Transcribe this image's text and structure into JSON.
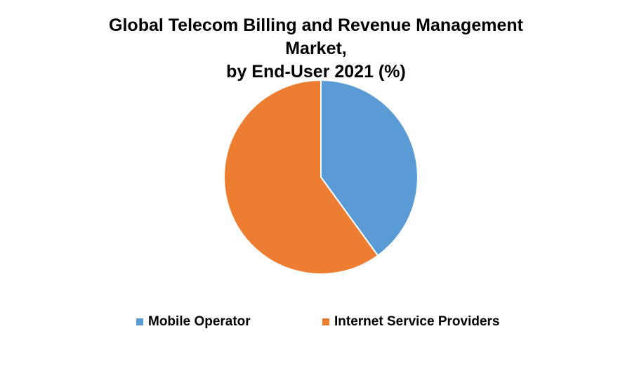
{
  "chart_data": {
    "type": "pie",
    "title_lines": [
      "Global Telecom Billing and Revenue Management",
      "Market,",
      "by End-User 2021 (%)"
    ],
    "categories": [
      "Mobile Operator",
      "Internet Service Providers"
    ],
    "values": [
      40,
      60
    ],
    "colors": [
      "#5b9bd5",
      "#ed7d31"
    ],
    "start_angle_deg": 0,
    "direction": "clockwise",
    "legend_position": "bottom"
  }
}
